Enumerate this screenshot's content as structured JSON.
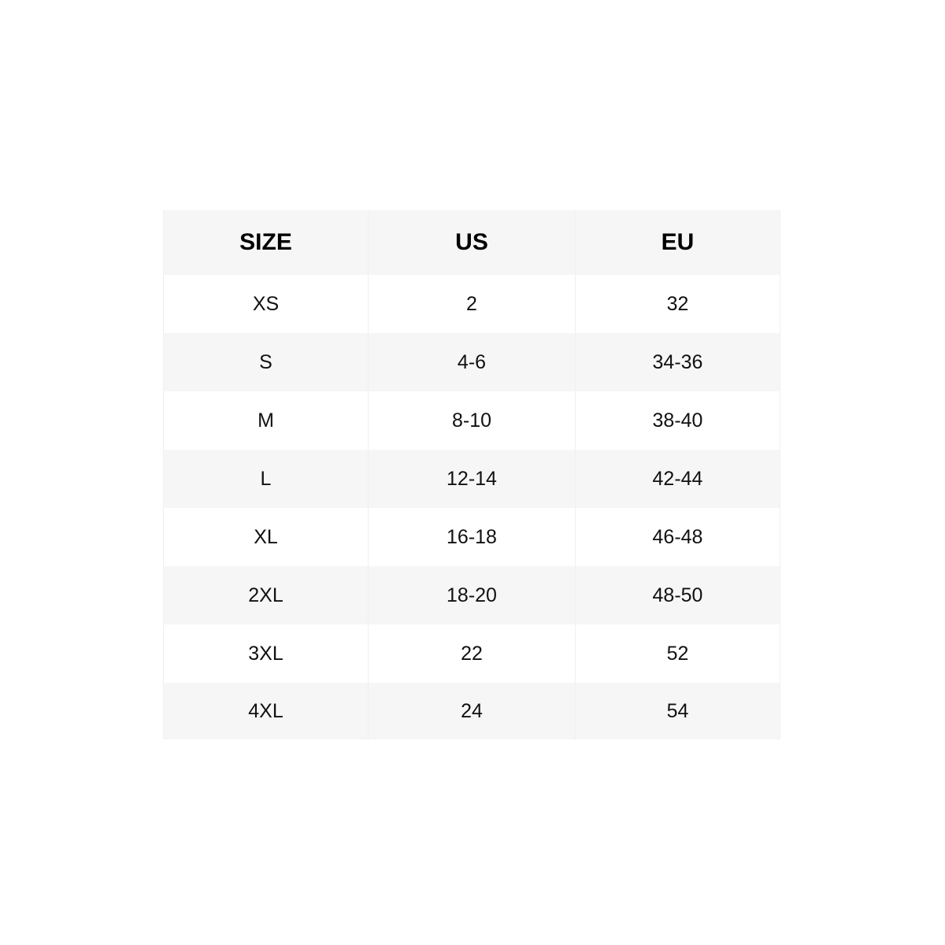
{
  "table": {
    "headers": [
      "SIZE",
      "US",
      "EU"
    ],
    "rows": [
      [
        "XS",
        "2",
        "32"
      ],
      [
        "S",
        "4-6",
        "34-36"
      ],
      [
        "M",
        "8-10",
        "38-40"
      ],
      [
        "L",
        "12-14",
        "42-44"
      ],
      [
        "XL",
        "16-18",
        "46-48"
      ],
      [
        "2XL",
        "18-20",
        "48-50"
      ],
      [
        "3XL",
        "22",
        "52"
      ],
      [
        "4XL",
        "24",
        "54"
      ]
    ]
  },
  "colors": {
    "header_bg": "#f6f6f6",
    "stripe_bg": "#f6f6f6",
    "text": "#111111"
  }
}
